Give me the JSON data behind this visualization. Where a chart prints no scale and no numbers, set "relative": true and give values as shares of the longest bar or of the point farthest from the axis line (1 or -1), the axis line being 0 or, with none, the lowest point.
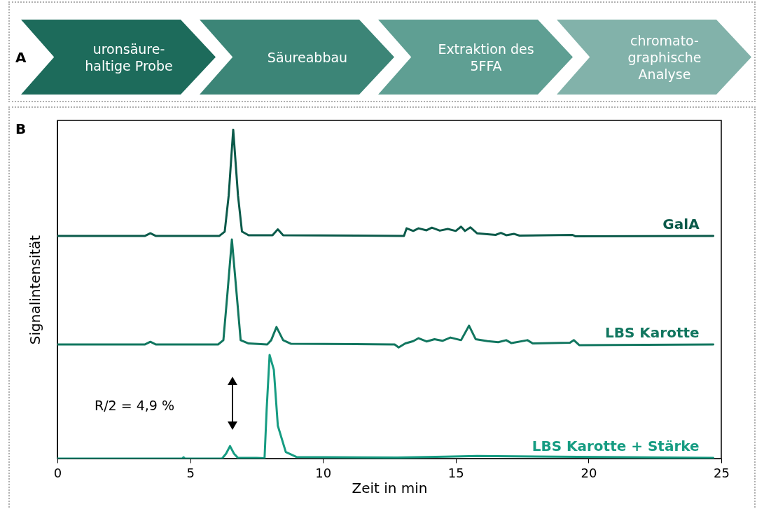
{
  "chart_data": [
    {
      "type": "other",
      "title": "A",
      "annotations": [
        "uronsäure-\nhaltige Probe",
        "Säureabbau",
        "Extraktion des\n5FFA",
        "chromato-\ngraphische\nAnalyse"
      ]
    },
    {
      "type": "line",
      "title": "B",
      "xlabel": "Zeit in min",
      "ylabel": "Signalintensität",
      "relative": true,
      "tick_labels": "x",
      "xlim": [
        0,
        25
      ],
      "xticks": [
        0,
        5,
        10,
        15,
        20,
        25
      ],
      "annotations": [
        "R/2 = 4,9 %"
      ],
      "series": [
        {
          "name": "GalA",
          "color": "#0b5a4a",
          "x": [
            0,
            3.3,
            3.5,
            3.7,
            6.1,
            6.3,
            6.45,
            6.62,
            6.8,
            6.95,
            7.2,
            8.1,
            8.3,
            8.5,
            13.05,
            13.15,
            13.4,
            13.6,
            13.9,
            14.1,
            14.4,
            14.7,
            15.0,
            15.2,
            15.35,
            15.55,
            15.8,
            16.5,
            16.7,
            16.9,
            17.2,
            17.4,
            19.4,
            19.5,
            24.7
          ],
          "values": [
            0.677,
            0.677,
            0.685,
            0.677,
            0.677,
            0.69,
            0.8,
            1,
            0.8,
            0.69,
            0.679,
            0.679,
            0.697,
            0.679,
            0.677,
            0.7,
            0.692,
            0.7,
            0.694,
            0.702,
            0.693,
            0.698,
            0.692,
            0.705,
            0.692,
            0.703,
            0.685,
            0.68,
            0.686,
            0.679,
            0.683,
            0.678,
            0.68,
            0.676,
            0.677
          ]
        },
        {
          "name": "LBS Karotte",
          "color": "#11765f",
          "x": [
            0,
            3.3,
            3.5,
            3.7,
            6.05,
            6.25,
            6.4,
            6.57,
            6.75,
            6.9,
            7.2,
            7.9,
            8.05,
            8.25,
            8.5,
            8.8,
            12.7,
            12.85,
            13.1,
            13.4,
            13.6,
            13.9,
            14.2,
            14.5,
            14.8,
            15.2,
            15.5,
            15.75,
            16.2,
            16.6,
            16.9,
            17.1,
            17.7,
            17.9,
            19.3,
            19.45,
            19.65,
            24.7
          ],
          "values": [
            0.347,
            0.347,
            0.355,
            0.347,
            0.347,
            0.36,
            0.5,
            0.666,
            0.5,
            0.36,
            0.35,
            0.347,
            0.36,
            0.4,
            0.36,
            0.349,
            0.347,
            0.338,
            0.35,
            0.357,
            0.366,
            0.356,
            0.363,
            0.358,
            0.368,
            0.36,
            0.404,
            0.363,
            0.357,
            0.354,
            0.36,
            0.351,
            0.36,
            0.35,
            0.352,
            0.36,
            0.345,
            0.347
          ]
        },
        {
          "name": "LBS Karotte + Stärke",
          "color": "#169c82",
          "x": [
            0,
            4.7,
            4.75,
            4.8,
            6.2,
            6.35,
            6.5,
            6.65,
            6.8,
            7.5,
            7.8,
            7.88,
            7.99,
            8.15,
            8.3,
            8.6,
            9.0,
            12.8,
            14.6,
            15.8,
            24.7
          ],
          "values": [
            0,
            0,
            0.004,
            0,
            0,
            0.015,
            0.038,
            0.015,
            0.002,
            0.002,
            0.001,
            0.15,
            0.315,
            0.27,
            0.1,
            0.02,
            0.005,
            0.003,
            0.006,
            0.008,
            0.002
          ]
        }
      ]
    }
  ]
}
